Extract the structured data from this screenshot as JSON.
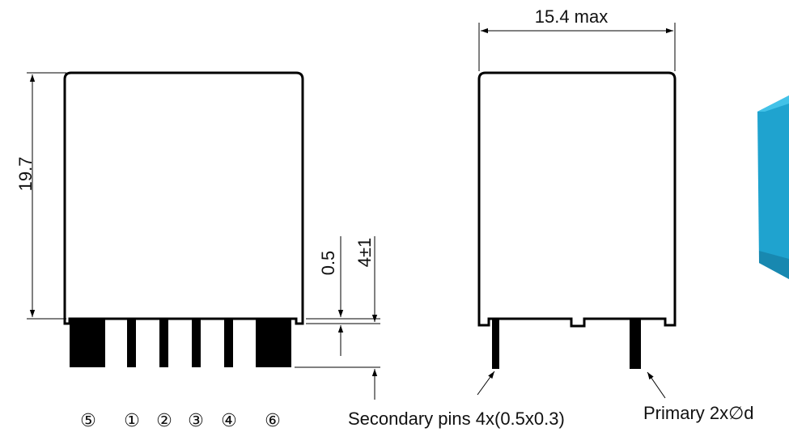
{
  "dimensions": {
    "height": "19.7",
    "width": "15.4 max",
    "offset": "0.5",
    "pin_length": "4±1"
  },
  "pin_numbers": [
    "⑤",
    "①",
    "②",
    "③",
    "④",
    "⑥"
  ],
  "callouts": {
    "secondary": "Secondary pins 4x(0.5x0.3)",
    "primary": "Primary 2x∅d"
  },
  "colors": {
    "line": "#000000",
    "component_3d": "#1fa3cf",
    "component_3d_top": "#42c2e8"
  }
}
